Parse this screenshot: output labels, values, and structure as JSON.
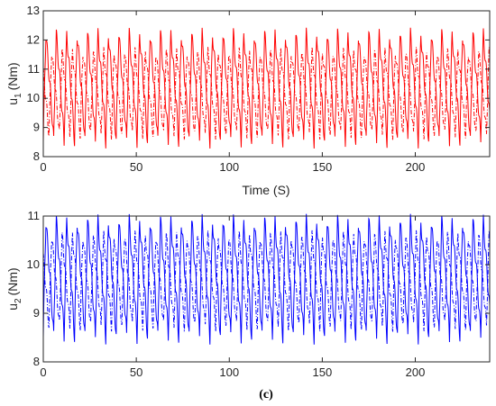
{
  "caption": "(c)",
  "chart_data": [
    {
      "type": "line",
      "xlabel": "Time (S)",
      "ylabel_main": "u",
      "ylabel_sub": "1",
      "ylabel_unit": "(Nm)",
      "xlim": [
        0,
        240
      ],
      "ylim": [
        8,
        13
      ],
      "xticks": [
        0,
        50,
        100,
        150,
        200
      ],
      "yticks": [
        8,
        9,
        10,
        11,
        12,
        13
      ],
      "color": "#ff0000",
      "oscillation": {
        "period": 5.6,
        "min": 8.5,
        "max": 12.2,
        "ripple_min": 8.7,
        "ripple_max": 11.6
      },
      "series": [
        {
          "style": "solid"
        },
        {
          "style": "dash-dot"
        }
      ]
    },
    {
      "type": "line",
      "xlabel": "",
      "ylabel_main": "u",
      "ylabel_sub": "2",
      "ylabel_unit": "(Nm)",
      "xlim": [
        0,
        240
      ],
      "ylim": [
        8,
        11
      ],
      "xticks": [
        0,
        50,
        100,
        150,
        200
      ],
      "yticks": [
        8,
        9,
        10,
        11
      ],
      "color": "#0000ff",
      "oscillation": {
        "period": 5.6,
        "min": 8.5,
        "max": 10.9,
        "ripple_min": 8.7,
        "ripple_max": 10.6
      },
      "series": [
        {
          "style": "solid"
        },
        {
          "style": "dash-dot"
        }
      ]
    }
  ]
}
